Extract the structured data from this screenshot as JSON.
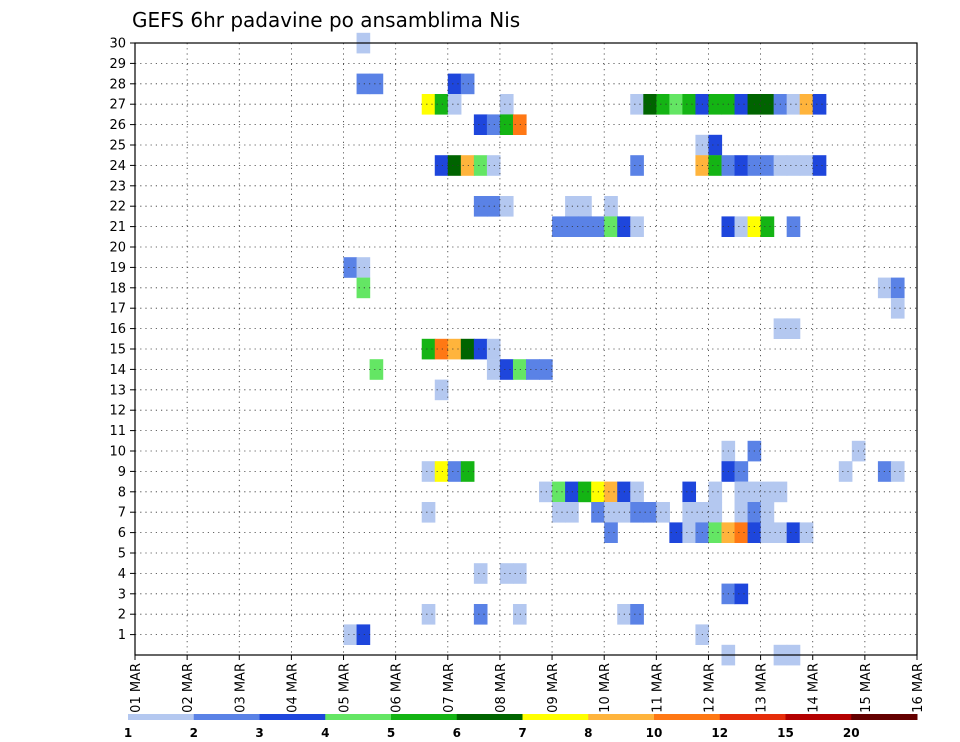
{
  "chart_data": {
    "type": "heatmap",
    "title": "GEFS 6hr padavine po ansamblima Nis",
    "xlabel": "",
    "ylabel": "",
    "x_tick_labels": [
      "01 MAR",
      "02 MAR",
      "03 MAR",
      "04 MAR",
      "05 MAR",
      "06 MAR",
      "07 MAR",
      "08 MAR",
      "09 MAR",
      "10 MAR",
      "11 MAR",
      "12 MAR",
      "13 MAR",
      "14 MAR",
      "15 MAR",
      "16 MAR"
    ],
    "y_tick_labels": [
      "1",
      "2",
      "3",
      "4",
      "5",
      "6",
      "7",
      "8",
      "9",
      "10",
      "11",
      "12",
      "13",
      "14",
      "15",
      "16",
      "17",
      "18",
      "19",
      "20",
      "21",
      "22",
      "23",
      "24",
      "25",
      "26",
      "27",
      "28",
      "29",
      "30"
    ],
    "x_range_days": [
      0,
      15
    ],
    "time_step_hours": 6,
    "y_range": [
      0,
      30
    ],
    "grid": true,
    "color_scale": {
      "labels": [
        "1",
        "2",
        "3",
        "4",
        "5",
        "6",
        "7",
        "8",
        "10",
        "12",
        "15",
        "20"
      ],
      "colors": [
        "#b4c8f0",
        "#5a82e6",
        "#1e46dc",
        "#64e664",
        "#14b414",
        "#006400",
        "#ffff00",
        "#ffb43c",
        "#ff7814",
        "#e62d0a",
        "#b40000",
        "#640000"
      ]
    },
    "cells": [
      {
        "member": 30,
        "days": [
          4.25
        ],
        "cls": [
          0
        ]
      },
      {
        "member": 28,
        "days": [
          4.25,
          4.5,
          6
        ],
        "cls": [
          1,
          1,
          2
        ]
      },
      {
        "member": 28,
        "days": [
          6.25
        ],
        "cls": [
          1
        ]
      },
      {
        "member": 27,
        "days": [
          5.5,
          5.75,
          6
        ],
        "cls": [
          6,
          4,
          0
        ]
      },
      {
        "member": 27,
        "days": [
          7
        ],
        "cls": [
          0
        ]
      },
      {
        "member": 27,
        "days": [
          9.5,
          9.75,
          10,
          10.25,
          10.5,
          10.75,
          11,
          11.25,
          11.5,
          11.75,
          12,
          12.25,
          12.5,
          12.75,
          13
        ],
        "cls": [
          0,
          5,
          4,
          3,
          4,
          2,
          4,
          4,
          2,
          5,
          5,
          1,
          0,
          7,
          2
        ]
      },
      {
        "member": 26,
        "days": [
          6.5,
          6.75,
          7,
          7.25
        ],
        "cls": [
          2,
          1,
          4,
          8
        ]
      },
      {
        "member": 25,
        "days": [
          10.75,
          11
        ],
        "cls": [
          0,
          2
        ]
      },
      {
        "member": 24,
        "days": [
          5.75,
          6,
          6.25,
          6.5,
          6.75
        ],
        "cls": [
          2,
          5,
          7,
          3,
          0
        ]
      },
      {
        "member": 24,
        "days": [
          9.5
        ],
        "cls": [
          1
        ]
      },
      {
        "member": 24,
        "days": [
          10.75,
          11,
          11.25,
          11.5,
          11.75,
          12
        ],
        "cls": [
          7,
          4,
          1,
          2,
          1,
          1
        ]
      },
      {
        "member": 24,
        "days": [
          12.25,
          12.5,
          12.75,
          13
        ],
        "cls": [
          0,
          0,
          0,
          2
        ]
      },
      {
        "member": 22,
        "days": [
          6.5,
          6.75,
          7
        ],
        "cls": [
          1,
          1,
          0
        ]
      },
      {
        "member": 22,
        "days": [
          8.25,
          8.5
        ],
        "cls": [
          0,
          0
        ]
      },
      {
        "member": 22,
        "days": [
          9
        ],
        "cls": [
          0
        ]
      },
      {
        "member": 21,
        "days": [
          8,
          8.25,
          8.5,
          8.75,
          9,
          9.25,
          9.5
        ],
        "cls": [
          1,
          1,
          1,
          1,
          3,
          2,
          0
        ]
      },
      {
        "member": 21,
        "days": [
          11.25,
          11.5,
          11.75,
          12
        ],
        "cls": [
          2,
          0,
          6,
          4
        ]
      },
      {
        "member": 21,
        "days": [
          12.5
        ],
        "cls": [
          1
        ]
      },
      {
        "member": 19,
        "days": [
          4,
          4.25
        ],
        "cls": [
          1,
          0
        ]
      },
      {
        "member": 18,
        "days": [
          4.25
        ],
        "cls": [
          3
        ]
      },
      {
        "member": 18,
        "days": [
          14.25,
          14.5
        ],
        "cls": [
          0,
          1
        ]
      },
      {
        "member": 17,
        "days": [
          14.5
        ],
        "cls": [
          0
        ]
      },
      {
        "member": 16,
        "days": [
          12.25,
          12.5
        ],
        "cls": [
          0,
          0
        ]
      },
      {
        "member": 15,
        "days": [
          5.5,
          5.75,
          6,
          6.25,
          6.5,
          6.75
        ],
        "cls": [
          4,
          8,
          7,
          5,
          2,
          0
        ]
      },
      {
        "member": 14,
        "days": [
          4.5
        ],
        "cls": [
          3
        ]
      },
      {
        "member": 14,
        "days": [
          6.75,
          7,
          7.25,
          7.5,
          7.75
        ],
        "cls": [
          0,
          2,
          3,
          1,
          1
        ]
      },
      {
        "member": 13,
        "days": [
          5.75
        ],
        "cls": [
          0
        ]
      },
      {
        "member": 10,
        "days": [
          11.25
        ],
        "cls": [
          0
        ]
      },
      {
        "member": 10,
        "days": [
          11.75
        ],
        "cls": [
          1
        ]
      },
      {
        "member": 10,
        "days": [
          13.75
        ],
        "cls": [
          0
        ]
      },
      {
        "member": 9,
        "days": [
          5.5,
          5.75,
          6,
          6.25
        ],
        "cls": [
          0,
          6,
          1,
          4
        ]
      },
      {
        "member": 9,
        "days": [
          11.25,
          11.5
        ],
        "cls": [
          2,
          1
        ]
      },
      {
        "member": 9,
        "days": [
          13.5
        ],
        "cls": [
          0
        ]
      },
      {
        "member": 9,
        "days": [
          14.25,
          14.5
        ],
        "cls": [
          1,
          0
        ]
      },
      {
        "member": 8,
        "days": [
          7.75,
          8,
          8.25,
          8.5,
          8.75,
          9,
          9.25,
          9.5
        ],
        "cls": [
          0,
          3,
          2,
          4,
          6,
          7,
          2,
          0
        ]
      },
      {
        "member": 8,
        "days": [
          10.5
        ],
        "cls": [
          2
        ]
      },
      {
        "member": 8,
        "days": [
          11
        ],
        "cls": [
          0
        ]
      },
      {
        "member": 8,
        "days": [
          11.5,
          11.75,
          12,
          12.25
        ],
        "cls": [
          0,
          0,
          0,
          0
        ]
      },
      {
        "member": 7,
        "days": [
          5.5
        ],
        "cls": [
          0
        ]
      },
      {
        "member": 7,
        "days": [
          8,
          8.25
        ],
        "cls": [
          0,
          0
        ]
      },
      {
        "member": 7,
        "days": [
          8.75,
          9,
          9.25,
          9.5,
          9.75,
          10
        ],
        "cls": [
          1,
          0,
          0,
          1,
          1,
          0
        ]
      },
      {
        "member": 7,
        "days": [
          10.5,
          10.75,
          11
        ],
        "cls": [
          0,
          0,
          0
        ]
      },
      {
        "member": 7,
        "days": [
          11.5,
          11.75,
          12
        ],
        "cls": [
          0,
          1,
          0
        ]
      },
      {
        "member": 6,
        "days": [
          9
        ],
        "cls": [
          1
        ]
      },
      {
        "member": 6,
        "days": [
          10.25,
          10.5,
          10.75,
          11,
          11.25,
          11.5,
          11.75,
          12,
          12.25,
          12.5,
          12.75
        ],
        "cls": [
          2,
          0,
          1,
          3,
          7,
          8,
          2,
          0,
          0,
          2,
          0
        ]
      },
      {
        "member": 4,
        "days": [
          6.5
        ],
        "cls": [
          0
        ]
      },
      {
        "member": 4,
        "days": [
          7,
          7.25
        ],
        "cls": [
          0,
          0
        ]
      },
      {
        "member": 3,
        "days": [
          11.25,
          11.5
        ],
        "cls": [
          1,
          2
        ]
      },
      {
        "member": 2,
        "days": [
          5.5
        ],
        "cls": [
          0
        ]
      },
      {
        "member": 2,
        "days": [
          6.5
        ],
        "cls": [
          1
        ]
      },
      {
        "member": 2,
        "days": [
          7.25
        ],
        "cls": [
          0
        ]
      },
      {
        "member": 2,
        "days": [
          9.25,
          9.5
        ],
        "cls": [
          0,
          1
        ]
      },
      {
        "member": 1,
        "days": [
          4,
          4.25
        ],
        "cls": [
          0,
          2
        ]
      },
      {
        "member": 1,
        "days": [
          10.75
        ],
        "cls": [
          0
        ]
      },
      {
        "member": 0,
        "days": [
          11.25
        ],
        "cls": [
          0
        ]
      },
      {
        "member": 0,
        "days": [
          12.25,
          12.5
        ],
        "cls": [
          0,
          0
        ]
      }
    ]
  }
}
